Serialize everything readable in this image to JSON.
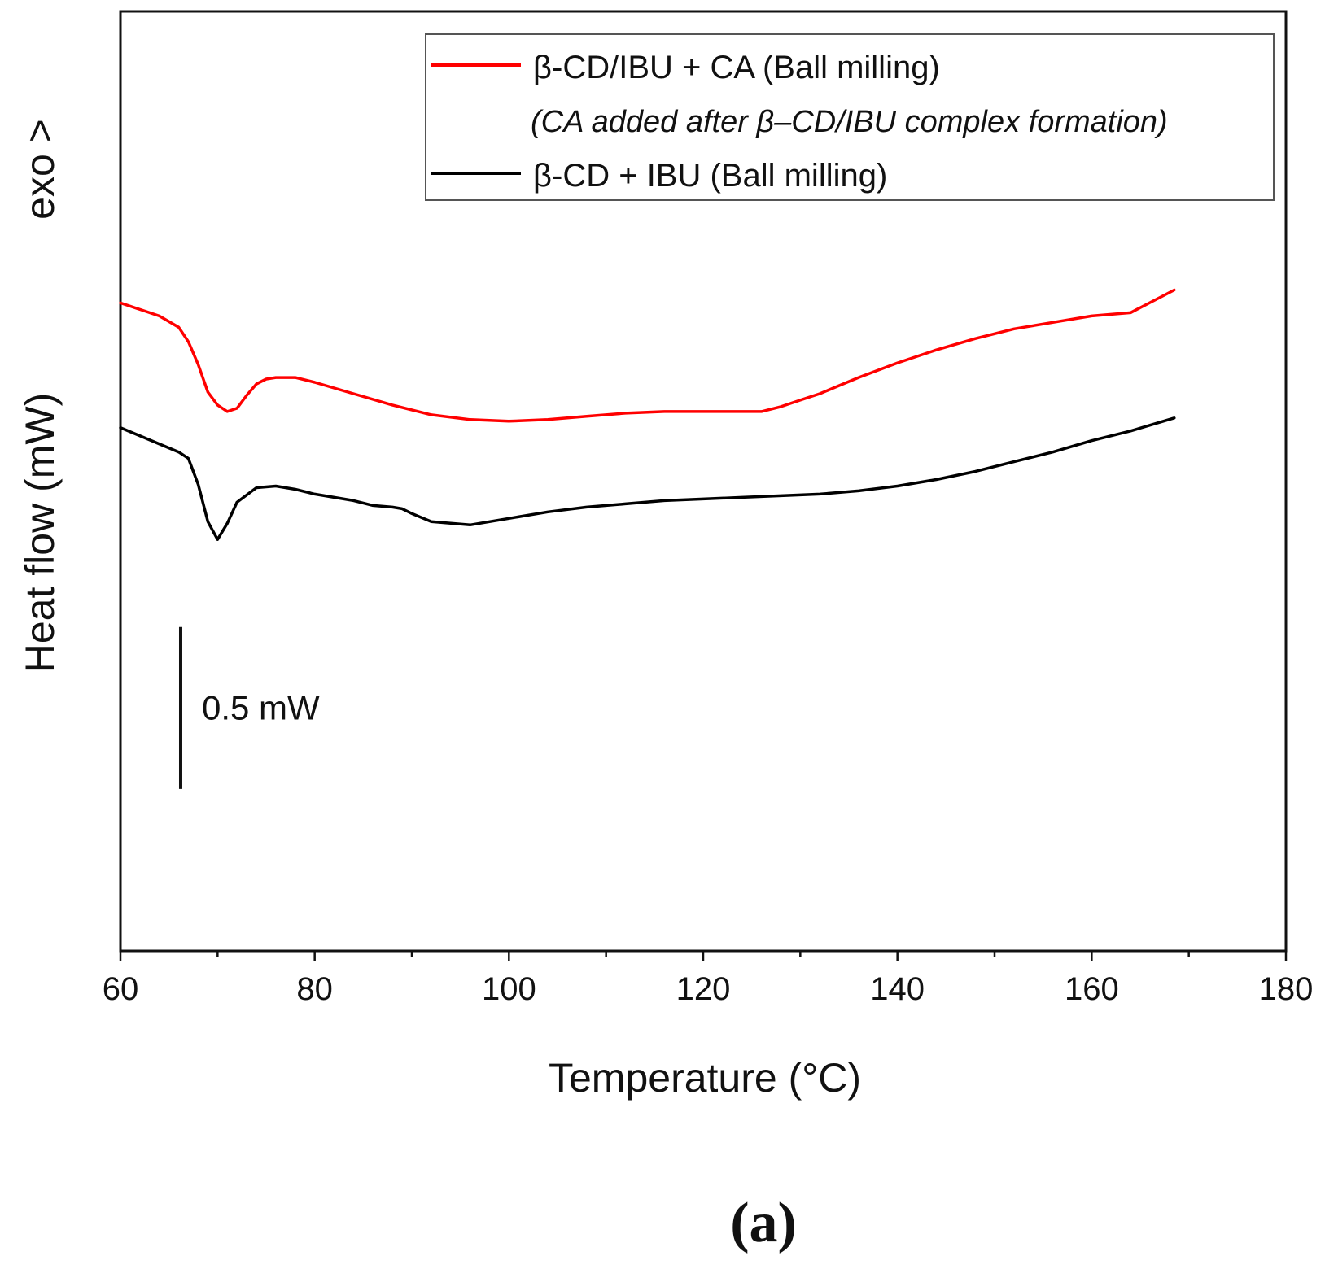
{
  "chart_data": {
    "type": "line",
    "title": "",
    "xlabel": "Temperature (°C)",
    "ylabel": "Heat flow (mW)",
    "exo_label": "exo >",
    "xlim": [
      60,
      180
    ],
    "ylim": [
      -5.0,
      0.8
    ],
    "xticks": [
      60,
      80,
      100,
      120,
      140,
      160,
      180
    ],
    "xtick_labels": [
      "60",
      "80",
      "100",
      "120",
      "140",
      "160",
      "180"
    ],
    "yticks_shown": false,
    "legend_position": "top-right",
    "series": [
      {
        "name": "β-CD/IBU + CA (Ball milling)",
        "note": "(CA added after β–CD/IBU complex formation)",
        "color": "#ff0000",
        "x": [
          60,
          62,
          64,
          66,
          67,
          68,
          69,
          70,
          71,
          72,
          73,
          74,
          75,
          76,
          78,
          80,
          84,
          88,
          92,
          96,
          100,
          104,
          108,
          112,
          116,
          120,
          124,
          126,
          128,
          130,
          132,
          134,
          136,
          140,
          144,
          148,
          152,
          156,
          160,
          164,
          168.5
        ],
        "y": [
          -1.0,
          -1.04,
          -1.08,
          -1.15,
          -1.24,
          -1.38,
          -1.55,
          -1.63,
          -1.67,
          -1.65,
          -1.57,
          -1.5,
          -1.47,
          -1.46,
          -1.46,
          -1.49,
          -1.56,
          -1.63,
          -1.69,
          -1.72,
          -1.73,
          -1.72,
          -1.7,
          -1.68,
          -1.67,
          -1.67,
          -1.67,
          -1.67,
          -1.64,
          -1.6,
          -1.56,
          -1.51,
          -1.46,
          -1.37,
          -1.29,
          -1.22,
          -1.16,
          -1.12,
          -1.08,
          -1.06,
          -0.92
        ]
      },
      {
        "name": "β-CD + IBU (Ball milling)",
        "note": "",
        "color": "#000000",
        "x": [
          60,
          62,
          64,
          66,
          67,
          68,
          69,
          70,
          71,
          72,
          74,
          76,
          78,
          80,
          84,
          86,
          88,
          89,
          90,
          92,
          96,
          100,
          104,
          108,
          112,
          116,
          120,
          124,
          128,
          132,
          136,
          140,
          144,
          148,
          152,
          156,
          160,
          164,
          168.5
        ],
        "y": [
          -1.77,
          -1.82,
          -1.87,
          -1.92,
          -1.96,
          -2.12,
          -2.35,
          -2.46,
          -2.36,
          -2.23,
          -2.14,
          -2.13,
          -2.15,
          -2.18,
          -2.22,
          -2.25,
          -2.26,
          -2.27,
          -2.3,
          -2.35,
          -2.37,
          -2.33,
          -2.29,
          -2.26,
          -2.24,
          -2.22,
          -2.21,
          -2.2,
          -2.19,
          -2.18,
          -2.16,
          -2.13,
          -2.09,
          -2.04,
          -1.98,
          -1.92,
          -1.85,
          -1.79,
          -1.71
        ]
      }
    ],
    "scale_bar": {
      "label": "0.5 mW",
      "value_mw": 0.5,
      "x": 66.2,
      "y_top": -3.0,
      "y_bottom": -4.0
    },
    "panel_label": "(a)"
  }
}
